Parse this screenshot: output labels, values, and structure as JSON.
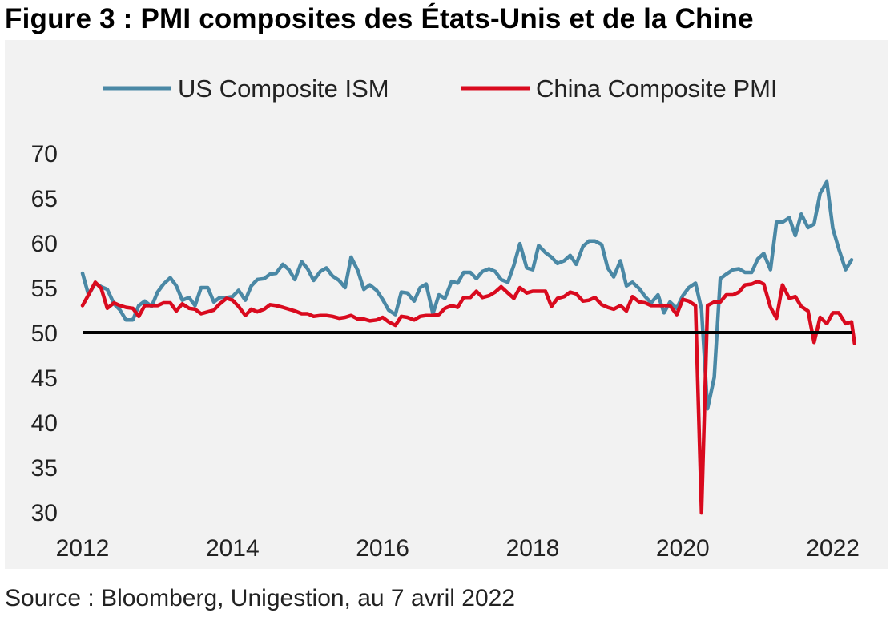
{
  "title": "Figure 3 : PMI composites des États-Unis et de la Chine",
  "source": "Source : Bloomberg, Unigestion, au 7 avril 2022",
  "chart_data": {
    "type": "line",
    "title": "Figure 3 : PMI composites des États-Unis et de la Chine",
    "xlabel": "",
    "ylabel": "",
    "xlim": [
      2012,
      2022.25
    ],
    "ylim": [
      30,
      70
    ],
    "x_ticks": [
      "2012",
      "2014",
      "2016",
      "2018",
      "2020",
      "2022"
    ],
    "y_ticks": [
      "70",
      "65",
      "60",
      "55",
      "50",
      "45",
      "40",
      "35",
      "30"
    ],
    "reference_line": 50,
    "legend_position": "top",
    "series": [
      {
        "name": "US Composite ISM",
        "color": "#4a88a5",
        "points": [
          [
            2012.0,
            56.6
          ],
          [
            2012.08,
            54.2
          ],
          [
            2012.17,
            55.5
          ],
          [
            2012.25,
            55.1
          ],
          [
            2012.33,
            54.8
          ],
          [
            2012.42,
            53.2
          ],
          [
            2012.5,
            52.5
          ],
          [
            2012.58,
            51.4
          ],
          [
            2012.67,
            51.4
          ],
          [
            2012.75,
            53.0
          ],
          [
            2012.83,
            53.5
          ],
          [
            2012.92,
            52.9
          ],
          [
            2013.0,
            54.5
          ],
          [
            2013.08,
            55.4
          ],
          [
            2013.17,
            56.1
          ],
          [
            2013.25,
            55.2
          ],
          [
            2013.33,
            53.6
          ],
          [
            2013.42,
            53.9
          ],
          [
            2013.5,
            53.0
          ],
          [
            2013.58,
            55.0
          ],
          [
            2013.67,
            55.0
          ],
          [
            2013.75,
            53.4
          ],
          [
            2013.83,
            53.9
          ],
          [
            2013.92,
            53.9
          ],
          [
            2014.0,
            54.0
          ],
          [
            2014.08,
            54.7
          ],
          [
            2014.17,
            53.6
          ],
          [
            2014.25,
            55.2
          ],
          [
            2014.33,
            55.9
          ],
          [
            2014.42,
            56.0
          ],
          [
            2014.5,
            56.5
          ],
          [
            2014.58,
            56.6
          ],
          [
            2014.67,
            57.6
          ],
          [
            2014.75,
            57.0
          ],
          [
            2014.83,
            55.9
          ],
          [
            2014.92,
            57.9
          ],
          [
            2015.0,
            57.1
          ],
          [
            2015.08,
            55.8
          ],
          [
            2015.17,
            56.8
          ],
          [
            2015.25,
            57.2
          ],
          [
            2015.33,
            56.3
          ],
          [
            2015.42,
            55.8
          ],
          [
            2015.5,
            55.0
          ],
          [
            2015.58,
            58.4
          ],
          [
            2015.67,
            56.9
          ],
          [
            2015.75,
            54.8
          ],
          [
            2015.83,
            55.3
          ],
          [
            2015.92,
            54.7
          ],
          [
            2016.0,
            53.7
          ],
          [
            2016.08,
            52.5
          ],
          [
            2016.17,
            52.0
          ],
          [
            2016.25,
            54.5
          ],
          [
            2016.33,
            54.4
          ],
          [
            2016.42,
            53.5
          ],
          [
            2016.5,
            55.0
          ],
          [
            2016.58,
            55.4
          ],
          [
            2016.67,
            52.1
          ],
          [
            2016.75,
            54.2
          ],
          [
            2016.83,
            53.8
          ],
          [
            2016.92,
            55.7
          ],
          [
            2017.0,
            55.5
          ],
          [
            2017.08,
            56.7
          ],
          [
            2017.17,
            56.7
          ],
          [
            2017.25,
            56.0
          ],
          [
            2017.33,
            56.8
          ],
          [
            2017.42,
            57.1
          ],
          [
            2017.5,
            56.8
          ],
          [
            2017.58,
            55.9
          ],
          [
            2017.67,
            55.6
          ],
          [
            2017.75,
            57.5
          ],
          [
            2017.83,
            59.9
          ],
          [
            2017.92,
            57.2
          ],
          [
            2018.0,
            57.0
          ],
          [
            2018.08,
            59.7
          ],
          [
            2018.17,
            58.9
          ],
          [
            2018.25,
            58.4
          ],
          [
            2018.33,
            57.7
          ],
          [
            2018.42,
            58.0
          ],
          [
            2018.5,
            58.6
          ],
          [
            2018.58,
            57.6
          ],
          [
            2018.67,
            59.6
          ],
          [
            2018.75,
            60.2
          ],
          [
            2018.83,
            60.2
          ],
          [
            2018.92,
            59.8
          ],
          [
            2019.0,
            57.2
          ],
          [
            2019.08,
            56.2
          ],
          [
            2019.17,
            58.0
          ],
          [
            2019.25,
            55.2
          ],
          [
            2019.33,
            55.6
          ],
          [
            2019.42,
            54.9
          ],
          [
            2019.5,
            54.0
          ],
          [
            2019.58,
            53.3
          ],
          [
            2019.67,
            54.2
          ],
          [
            2019.75,
            52.2
          ],
          [
            2019.83,
            53.4
          ],
          [
            2019.92,
            52.7
          ],
          [
            2020.0,
            54.1
          ],
          [
            2020.08,
            55.0
          ],
          [
            2020.17,
            55.5
          ],
          [
            2020.25,
            52.6
          ],
          [
            2020.33,
            41.5
          ],
          [
            2020.42,
            45.0
          ],
          [
            2020.5,
            56.0
          ],
          [
            2020.58,
            56.5
          ],
          [
            2020.67,
            57.0
          ],
          [
            2020.75,
            57.1
          ],
          [
            2020.83,
            56.7
          ],
          [
            2020.92,
            56.7
          ],
          [
            2021.0,
            58.2
          ],
          [
            2021.08,
            58.8
          ],
          [
            2021.17,
            57.0
          ],
          [
            2021.25,
            62.3
          ],
          [
            2021.33,
            62.3
          ],
          [
            2021.42,
            62.8
          ],
          [
            2021.5,
            60.8
          ],
          [
            2021.58,
            63.2
          ],
          [
            2021.67,
            61.7
          ],
          [
            2021.75,
            62.1
          ],
          [
            2021.83,
            65.5
          ],
          [
            2021.92,
            66.8
          ],
          [
            2022.0,
            61.6
          ],
          [
            2022.08,
            59.3
          ],
          [
            2022.17,
            57.0
          ],
          [
            2022.25,
            58.1
          ]
        ]
      },
      {
        "name": "China Composite PMI",
        "color": "#d90a1e",
        "points": [
          [
            2012.0,
            53.0
          ],
          [
            2012.08,
            54.2
          ],
          [
            2012.17,
            55.6
          ],
          [
            2012.25,
            54.9
          ],
          [
            2012.33,
            52.7
          ],
          [
            2012.42,
            53.3
          ],
          [
            2012.5,
            53.0
          ],
          [
            2012.58,
            52.8
          ],
          [
            2012.67,
            52.7
          ],
          [
            2012.75,
            51.8
          ],
          [
            2012.83,
            53.0
          ],
          [
            2012.92,
            53.0
          ],
          [
            2013.0,
            53.0
          ],
          [
            2013.08,
            53.3
          ],
          [
            2013.17,
            53.3
          ],
          [
            2013.25,
            52.4
          ],
          [
            2013.33,
            53.2
          ],
          [
            2013.42,
            52.7
          ],
          [
            2013.5,
            52.6
          ],
          [
            2013.58,
            52.1
          ],
          [
            2013.67,
            52.3
          ],
          [
            2013.75,
            52.5
          ],
          [
            2013.83,
            53.2
          ],
          [
            2013.92,
            53.8
          ],
          [
            2014.0,
            53.6
          ],
          [
            2014.08,
            52.9
          ],
          [
            2014.17,
            51.9
          ],
          [
            2014.25,
            52.6
          ],
          [
            2014.33,
            52.3
          ],
          [
            2014.42,
            52.6
          ],
          [
            2014.5,
            53.1
          ],
          [
            2014.58,
            53.0
          ],
          [
            2014.67,
            52.8
          ],
          [
            2014.75,
            52.6
          ],
          [
            2014.83,
            52.4
          ],
          [
            2014.92,
            52.1
          ],
          [
            2015.0,
            52.1
          ],
          [
            2015.08,
            51.8
          ],
          [
            2015.17,
            51.9
          ],
          [
            2015.25,
            51.9
          ],
          [
            2015.33,
            51.8
          ],
          [
            2015.42,
            51.6
          ],
          [
            2015.5,
            51.7
          ],
          [
            2015.58,
            51.9
          ],
          [
            2015.67,
            51.5
          ],
          [
            2015.75,
            51.5
          ],
          [
            2015.83,
            51.3
          ],
          [
            2015.92,
            51.4
          ],
          [
            2016.0,
            51.7
          ],
          [
            2016.08,
            51.2
          ],
          [
            2016.17,
            50.8
          ],
          [
            2016.25,
            51.8
          ],
          [
            2016.33,
            51.7
          ],
          [
            2016.42,
            51.4
          ],
          [
            2016.5,
            51.8
          ],
          [
            2016.58,
            51.9
          ],
          [
            2016.67,
            51.9
          ],
          [
            2016.75,
            52.0
          ],
          [
            2016.83,
            52.7
          ],
          [
            2016.92,
            53.0
          ],
          [
            2017.0,
            52.8
          ],
          [
            2017.08,
            53.9
          ],
          [
            2017.17,
            53.9
          ],
          [
            2017.25,
            54.6
          ],
          [
            2017.33,
            53.9
          ],
          [
            2017.42,
            54.1
          ],
          [
            2017.5,
            54.5
          ],
          [
            2017.58,
            55.1
          ],
          [
            2017.67,
            54.4
          ],
          [
            2017.75,
            53.8
          ],
          [
            2017.83,
            55.0
          ],
          [
            2017.92,
            54.4
          ],
          [
            2018.0,
            54.6
          ],
          [
            2018.08,
            54.6
          ],
          [
            2018.17,
            54.6
          ],
          [
            2018.25,
            52.9
          ],
          [
            2018.33,
            53.8
          ],
          [
            2018.42,
            54.0
          ],
          [
            2018.5,
            54.5
          ],
          [
            2018.58,
            54.3
          ],
          [
            2018.67,
            53.5
          ],
          [
            2018.75,
            53.6
          ],
          [
            2018.83,
            53.9
          ],
          [
            2018.92,
            53.1
          ],
          [
            2019.0,
            52.8
          ],
          [
            2019.08,
            52.6
          ],
          [
            2019.17,
            53.0
          ],
          [
            2019.25,
            52.4
          ],
          [
            2019.33,
            54.0
          ],
          [
            2019.42,
            53.4
          ],
          [
            2019.5,
            53.3
          ],
          [
            2019.58,
            53.0
          ],
          [
            2019.67,
            53.0
          ],
          [
            2019.75,
            53.0
          ],
          [
            2019.83,
            53.0
          ],
          [
            2019.92,
            52.0
          ],
          [
            2020.0,
            53.7
          ],
          [
            2020.08,
            53.5
          ],
          [
            2020.17,
            53.0
          ],
          [
            2020.25,
            29.9
          ],
          [
            2020.33,
            53.0
          ],
          [
            2020.42,
            53.4
          ],
          [
            2020.5,
            53.4
          ],
          [
            2020.58,
            54.2
          ],
          [
            2020.67,
            54.2
          ],
          [
            2020.75,
            54.5
          ],
          [
            2020.83,
            55.3
          ],
          [
            2020.92,
            55.4
          ],
          [
            2021.0,
            55.7
          ],
          [
            2021.08,
            55.4
          ],
          [
            2021.17,
            52.8
          ],
          [
            2021.25,
            51.6
          ],
          [
            2021.33,
            55.3
          ],
          [
            2021.42,
            53.8
          ],
          [
            2021.5,
            54.0
          ],
          [
            2021.58,
            52.9
          ],
          [
            2021.67,
            52.4
          ],
          [
            2021.75,
            48.9
          ],
          [
            2021.83,
            51.7
          ],
          [
            2021.92,
            51.0
          ],
          [
            2022.0,
            52.2
          ],
          [
            2022.08,
            52.2
          ],
          [
            2022.17,
            51.0
          ],
          [
            2022.25,
            51.2
          ],
          [
            2022.29,
            48.8
          ]
        ]
      }
    ]
  }
}
